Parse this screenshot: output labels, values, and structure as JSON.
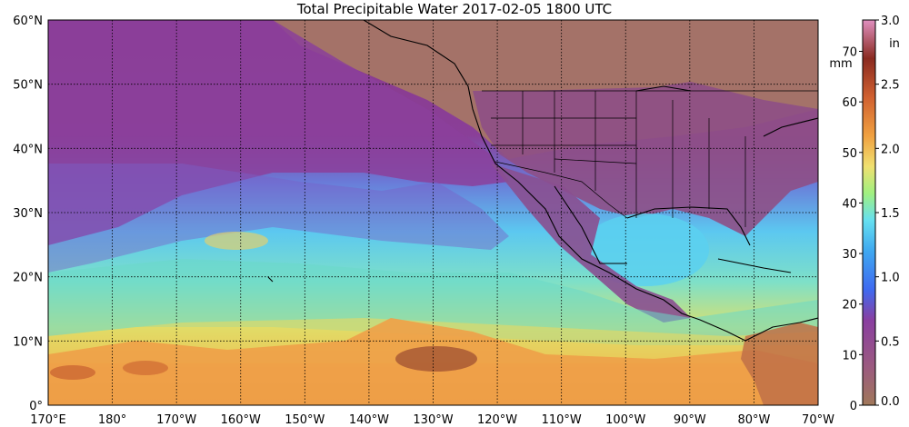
{
  "title": "Total Precipitable Water  2017-02-05 1800 UTC",
  "lat_labels": [
    "60°N",
    "50°N",
    "40°N",
    "30°N",
    "20°N",
    "10°N",
    "0°"
  ],
  "lon_labels": [
    "170°E",
    "180°",
    "170°W",
    "160°W",
    "150°W",
    "140°W",
    "130°W",
    "120°W",
    "110°W",
    "100°W",
    "90°W",
    "80°W",
    "70°W"
  ],
  "colorbar": {
    "unit_mm": "mm",
    "unit_in": "in",
    "mm_ticks": [
      "0",
      "10",
      "20",
      "30",
      "40",
      "50",
      "60",
      "70"
    ],
    "in_ticks": [
      "0.0",
      "0.5",
      "1.0",
      "1.5",
      "2.0",
      "2.5",
      "3.0"
    ]
  },
  "colors": {
    "dry": "#a0785a",
    "purple": "#8a3f9a",
    "blue": "#3fa0f0",
    "cyan": "#66e0f0",
    "green": "#90e08a",
    "yellow": "#f0e070",
    "orange": "#f0a040",
    "red": "#b03a2a"
  }
}
